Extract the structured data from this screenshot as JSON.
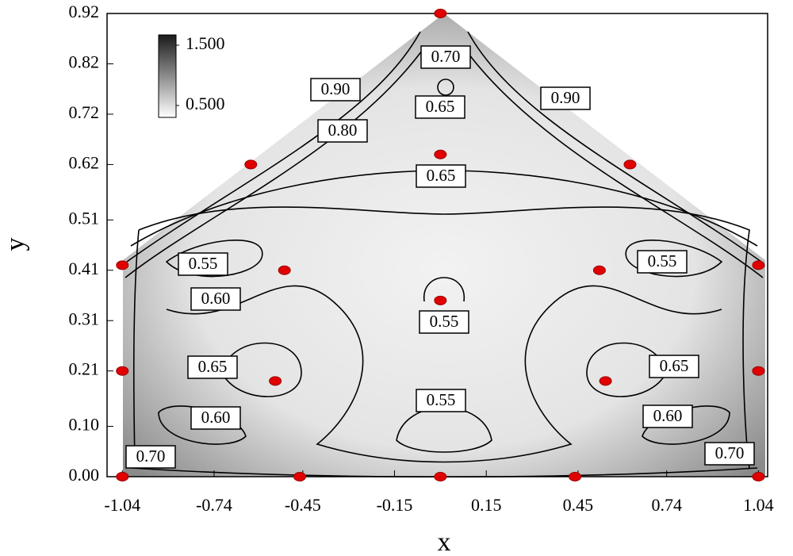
{
  "chart_data": {
    "type": "contour",
    "x_label": "x",
    "y_label": "y",
    "xlim": [
      -1.09,
      1.07
    ],
    "ylim": [
      0,
      0.92
    ],
    "xticks": [
      -1.04,
      -0.74,
      -0.45,
      -0.15,
      0.15,
      0.45,
      0.74,
      1.04
    ],
    "yticks": [
      {
        "value": 0,
        "label": "0.00"
      },
      {
        "value": 0.1,
        "label": "0.10"
      },
      0.21,
      0.31,
      0.41,
      0.51,
      0.62,
      0.72,
      0.82,
      0.92
    ],
    "points": {
      "color": "#e00000",
      "x": [
        -1.04,
        -0.46,
        0,
        0.44,
        1.04,
        -1.04,
        1.04,
        -1.04,
        1.04,
        -0.62,
        0.62,
        0,
        0,
        -0.51,
        0.52,
        0,
        -0.54,
        0.54
      ],
      "y": [
        0,
        0,
        0,
        0,
        0,
        0.21,
        0.21,
        0.42,
        0.42,
        0.62,
        0.62,
        0.92,
        0.64,
        0.41,
        0.41,
        0.35,
        0.19,
        0.19
      ]
    },
    "colorbar": {
      "range": [
        0.5,
        1.5
      ],
      "ticks": [
        {
          "value": 1.5,
          "label": "1.500"
        },
        {
          "value": 0.5,
          "label": "0.500"
        }
      ]
    },
    "contour_labels": [
      "0.70",
      "0.90",
      "0.65",
      "0.90",
      "0.80",
      "0.65",
      "0.55",
      "0.55",
      "0.60",
      "0.55",
      "0.65",
      "0.65",
      "0.60",
      "0.55",
      "0.60",
      "0.70",
      "0.70"
    ]
  }
}
